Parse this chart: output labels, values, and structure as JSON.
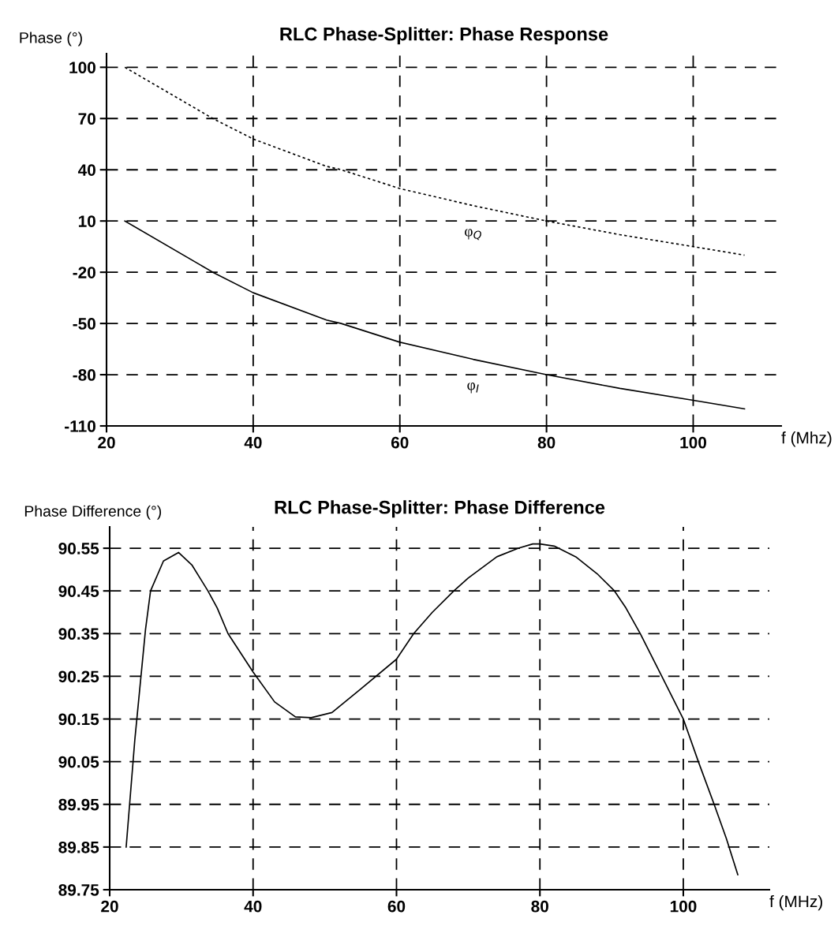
{
  "chart_data": [
    {
      "type": "line",
      "title": "RLC Phase-Splitter: Phase Response",
      "xlabel": "f (Mhz)",
      "ylabel": "Phase (°)",
      "xlim": [
        20,
        112
      ],
      "xticks": [
        20,
        40,
        60,
        80,
        100
      ],
      "ylim": [
        -110,
        108
      ],
      "yticks": [
        100,
        70,
        40,
        10,
        -20,
        -50,
        -80,
        -110
      ],
      "grid": true,
      "legend": false,
      "series": [
        {
          "name": "φ$_{Q}$",
          "color": "#000000",
          "line_style": "dotted",
          "x": [
            22.5,
            34.5,
            40,
            50,
            52,
            60,
            70,
            80,
            90,
            100,
            107
          ],
          "values": [
            100,
            70,
            58,
            42,
            40,
            29,
            19,
            10,
            2,
            -5,
            -10
          ]
        },
        {
          "name": "φ$_{I}$",
          "color": "#000000",
          "line_style": "solid",
          "x": [
            22.5,
            34.5,
            40,
            50,
            52,
            60,
            70,
            80,
            90,
            100,
            107
          ],
          "values": [
            10,
            -20,
            -32,
            -48,
            -50,
            -61,
            -71,
            -80,
            -88,
            -95,
            -100
          ]
        }
      ]
    },
    {
      "type": "line",
      "title": "RLC Phase-Splitter: Phase Difference",
      "xlabel": "f (MHz)",
      "ylabel": "Phase Difference (°)",
      "xlim": [
        20,
        112
      ],
      "xticks": [
        20,
        40,
        60,
        80,
        100
      ],
      "ylim": [
        89.75,
        90.6
      ],
      "yticks": [
        90.55,
        90.45,
        90.35,
        90.25,
        90.15,
        90.05,
        89.95,
        89.85,
        89.75
      ],
      "grid": true,
      "legend": false,
      "series": [
        {
          "color": "#000000",
          "line_style": "solid",
          "x": [
            22.3,
            23.5,
            25,
            25.7,
            27.5,
            29.6,
            31.5,
            33.7,
            35,
            36.5,
            40,
            43,
            45.9,
            48.1,
            51,
            55,
            60,
            62.4,
            65,
            68,
            70,
            74,
            77,
            79,
            80,
            82,
            85,
            88,
            90.4,
            92,
            94,
            97,
            100,
            102.1,
            104.3,
            106,
            107.6
          ],
          "values": [
            89.85,
            90.1,
            90.36,
            90.45,
            90.52,
            90.54,
            90.51,
            90.45,
            90.41,
            90.35,
            90.26,
            90.19,
            90.155,
            90.153,
            90.165,
            90.22,
            90.29,
            90.35,
            90.4,
            90.45,
            90.48,
            90.53,
            90.55,
            90.56,
            90.56,
            90.555,
            90.53,
            90.49,
            90.45,
            90.41,
            90.35,
            90.25,
            90.15,
            90.05,
            89.95,
            89.87,
            89.785
          ]
        }
      ]
    }
  ]
}
